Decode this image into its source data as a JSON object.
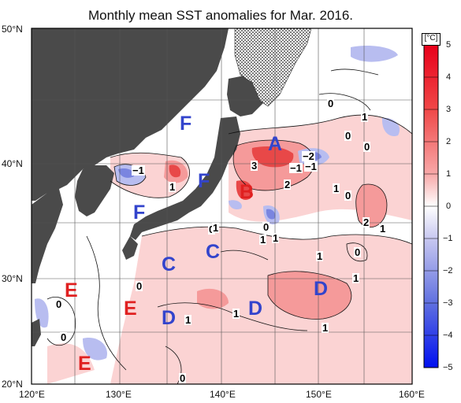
{
  "title": "Monthly mean SST anomalies for Mar. 2016.",
  "unit": "[°C]",
  "lat_labels": [
    "50°N",
    "40°N",
    "30°N",
    "20°N"
  ],
  "lon_labels": [
    "120°E",
    "130°E",
    "140°E",
    "150°E",
    "160°E"
  ],
  "colorbar_ticks": [
    "5",
    "4",
    "3",
    "2",
    "1",
    "0",
    "−1",
    "−2",
    "−3",
    "−4",
    "−5"
  ],
  "region_labels": [
    {
      "text": "A",
      "color": "#3344cc"
    },
    {
      "text": "B",
      "color": "#e02020"
    },
    {
      "text": "C",
      "color": "#3344cc"
    },
    {
      "text": "C",
      "color": "#3344cc"
    },
    {
      "text": "D",
      "color": "#3344cc"
    },
    {
      "text": "D",
      "color": "#3344cc"
    },
    {
      "text": "D",
      "color": "#3344cc"
    },
    {
      "text": "E",
      "color": "#e02020"
    },
    {
      "text": "E",
      "color": "#e02020"
    },
    {
      "text": "E",
      "color": "#e02020"
    },
    {
      "text": "F",
      "color": "#3344cc"
    },
    {
      "text": "F",
      "color": "#3344cc"
    },
    {
      "text": "F",
      "color": "#3344cc"
    }
  ],
  "contour_labels": [
    "0",
    "1",
    "0",
    "0",
    "−2",
    "−1",
    "3",
    "−1",
    "2",
    "1",
    "0",
    "−1",
    "1",
    "0",
    "1",
    "1",
    "0",
    "2",
    "1",
    "1",
    "0",
    "1",
    "0",
    "1",
    "1",
    "0",
    "1",
    "0",
    "0",
    "1"
  ],
  "colors": {
    "land": "#4a4a4a",
    "warm": "#e84a4a",
    "cool": "#5060d0",
    "sea": "#ffffff"
  }
}
